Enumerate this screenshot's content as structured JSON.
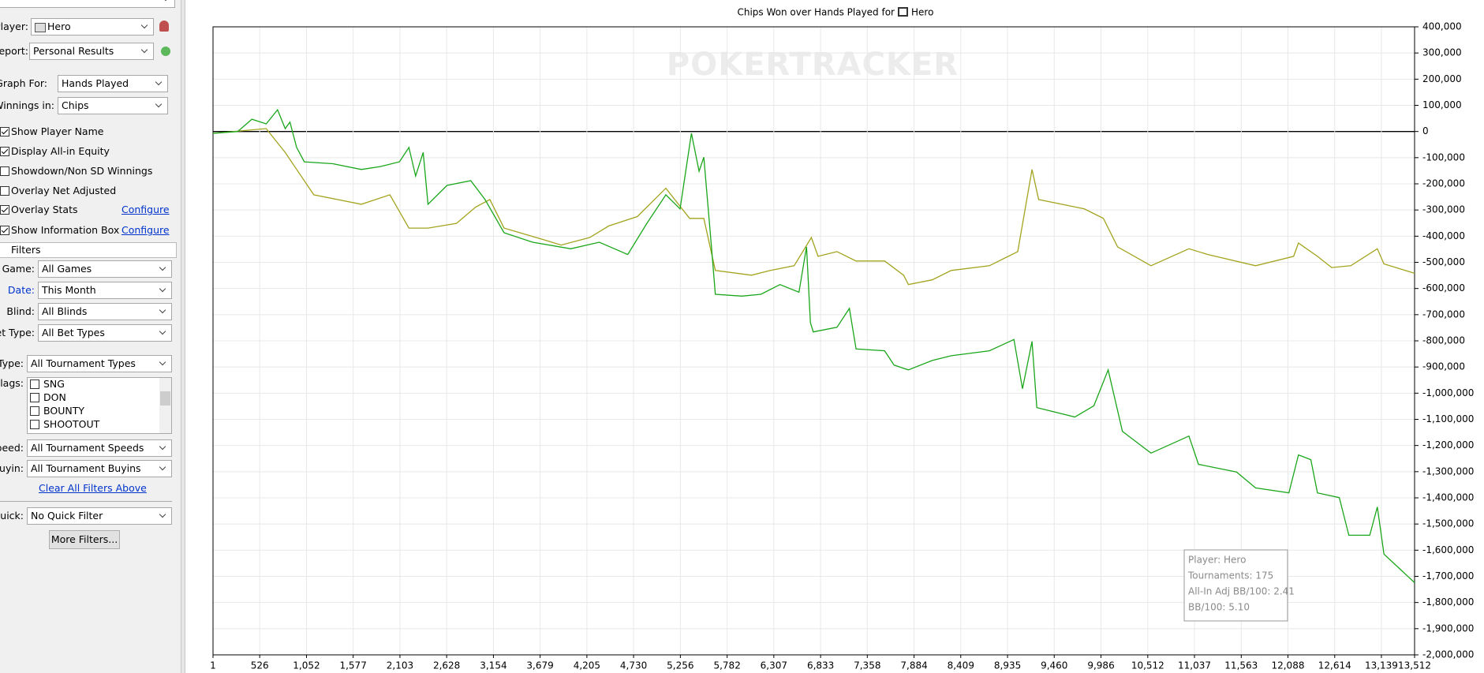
{
  "sidebar": {
    "player": {
      "label": "Player:",
      "value": "Hero"
    },
    "report": {
      "label": "Report:",
      "value": "Personal Results"
    },
    "graph_for": {
      "label": "Graph For:",
      "value": "Hands Played"
    },
    "winnings_in": {
      "label": "Winnings in:",
      "value": "Chips"
    },
    "options": [
      {
        "label": "Show Player Name",
        "checked": true
      },
      {
        "label": "Display All-in Equity",
        "checked": true
      },
      {
        "label": "Showdown/Non SD Winnings",
        "checked": false
      },
      {
        "label": "Overlay Net Adjusted",
        "checked": false
      },
      {
        "label": "Overlay Stats",
        "checked": true,
        "link": "Configure"
      },
      {
        "label": "Show Information Box",
        "checked": true,
        "link": "Configure"
      }
    ],
    "filters_title": "Filters",
    "filters": [
      {
        "label": "Game:",
        "value": "All Games"
      },
      {
        "label": "Date:",
        "value": "This Month"
      },
      {
        "label": "Blind:",
        "value": "All Blinds"
      },
      {
        "label": "Bet Type:",
        "value": "All Bet Types"
      },
      {
        "label": "Type:",
        "value": "All Tournament Types"
      }
    ],
    "flags": {
      "label": "Flags:",
      "items": [
        "SNG",
        "DON",
        "BOUNTY",
        "SHOOTOUT"
      ]
    },
    "filters2": [
      {
        "label": "Speed:",
        "value": "All Tournament Speeds"
      },
      {
        "label": "Buyin:",
        "value": "All Tournament Buyins"
      }
    ],
    "clear": "Clear All Filters Above",
    "quick": {
      "label": "Quick:",
      "value": "No Quick Filter"
    },
    "more": "More Filters..."
  },
  "chart_data": {
    "type": "line",
    "title": "Chips Won over Hands Played for",
    "title_player": "Hero",
    "watermark": "POKERTRACKER",
    "grid": true,
    "xlim": [
      1,
      13512
    ],
    "ylim": [
      -2000000,
      400000
    ],
    "xticks": [
      1,
      526,
      {
        "value": 1052,
        "label": "1,052"
      },
      {
        "value": 1577,
        "label": "1,577"
      },
      {
        "value": 2103,
        "label": "2,103"
      },
      {
        "value": 2628,
        "label": "2,628"
      },
      {
        "value": 3154,
        "label": "3,154"
      },
      {
        "value": 3679,
        "label": "3,679"
      },
      {
        "value": 4205,
        "label": "4,205"
      },
      {
        "value": 4730,
        "label": "4,730"
      },
      {
        "value": 5256,
        "label": "5,256"
      },
      {
        "value": 5782,
        "label": "5,782"
      },
      {
        "value": 6307,
        "label": "6,307"
      },
      {
        "value": 6833,
        "label": "6,833"
      },
      {
        "value": 7358,
        "label": "7,358"
      },
      {
        "value": 7884,
        "label": "7,884"
      },
      {
        "value": 8409,
        "label": "8,409"
      },
      {
        "value": 8935,
        "label": "8,935"
      },
      {
        "value": 9460,
        "label": "9,460"
      },
      {
        "value": 9986,
        "label": "9,986"
      },
      {
        "value": 10512,
        "label": "10,512"
      },
      {
        "value": 11037,
        "label": "11,037"
      },
      {
        "value": 11563,
        "label": "11,563"
      },
      {
        "value": 12088,
        "label": "12,088"
      },
      {
        "value": 12614,
        "label": "12,614"
      },
      {
        "value": 13139,
        "label": "13,139"
      },
      {
        "value": 13512,
        "label": "13,512"
      }
    ],
    "yticks": [
      {
        "value": 400000,
        "label": "400,000"
      },
      {
        "value": 300000,
        "label": "300,000"
      },
      {
        "value": 200000,
        "label": "200,000"
      },
      {
        "value": 100000,
        "label": "100,000"
      },
      0,
      {
        "value": -100000,
        "label": "-100,000"
      },
      {
        "value": -200000,
        "label": "-200,000"
      },
      {
        "value": -300000,
        "label": "-300,000"
      },
      {
        "value": -400000,
        "label": "-400,000"
      },
      {
        "value": -500000,
        "label": "-500,000"
      },
      {
        "value": -600000,
        "label": "-600,000"
      },
      {
        "value": -700000,
        "label": "-700,000"
      },
      {
        "value": -800000,
        "label": "-800,000"
      },
      {
        "value": -900000,
        "label": "-900,000"
      },
      {
        "value": -1000000,
        "label": "-1,000,000"
      },
      {
        "value": -1100000,
        "label": "-1,100,000"
      },
      {
        "value": -1200000,
        "label": "-1,200,000"
      },
      {
        "value": -1300000,
        "label": "-1,300,000"
      },
      {
        "value": -1400000,
        "label": "-1,400,000"
      },
      {
        "value": -1500000,
        "label": "-1,500,000"
      },
      {
        "value": -1600000,
        "label": "-1,600,000"
      },
      {
        "value": -1700000,
        "label": "-1,700,000"
      },
      {
        "value": -1800000,
        "label": "-1,800,000"
      },
      {
        "value": -1900000,
        "label": "-1,900,000"
      },
      {
        "value": -2000000,
        "label": "-2,000,000"
      }
    ],
    "series": [
      {
        "color": "#a3a31e",
        "x": [
          1,
          599,
          813,
          1134,
          1669,
          1990,
          2204,
          2418,
          2739,
          2953,
          3114,
          3274,
          3702,
          3916,
          4237,
          4451,
          4772,
          5093,
          5360,
          5520,
          5649,
          6056,
          6269,
          6536,
          6729,
          6804,
          7017,
          7232,
          7553,
          7767,
          7820,
          8088,
          8302,
          8731,
          9050,
          9210,
          9285,
          9799,
          10013,
          10173,
          10548,
          10975,
          11189,
          11724,
          12152,
          12206,
          12420,
          12580,
          12794,
          13093,
          13168,
          13512
        ],
        "values": [
          -7000,
          11000,
          -80000,
          -242000,
          -278000,
          -242000,
          -369000,
          -369000,
          -351000,
          -289000,
          -260000,
          -369000,
          -412000,
          -434000,
          -405000,
          -361000,
          -325000,
          -217000,
          -332000,
          -332000,
          -531000,
          -549000,
          -531000,
          -513000,
          -405000,
          -477000,
          -459000,
          -495000,
          -495000,
          -549000,
          -585000,
          -567000,
          -531000,
          -513000,
          -459000,
          -145000,
          -260000,
          -296000,
          -332000,
          -441000,
          -513000,
          -448000,
          -470000,
          -513000,
          -477000,
          -426000,
          -477000,
          -520000,
          -513000,
          -448000,
          -506000,
          -542000
        ]
      },
      {
        "color": "#1aa61a",
        "x": [
          1,
          278,
          438,
          599,
          727,
          813,
          866,
          941,
          1027,
          1348,
          1669,
          1883,
          2097,
          2204,
          2279,
          2364,
          2418,
          2632,
          2899,
          3060,
          3274,
          3595,
          4023,
          4344,
          4665,
          4879,
          5093,
          5253,
          5381,
          5467,
          5520,
          5606,
          5649,
          5948,
          6162,
          6376,
          6590,
          6675,
          6718,
          6750,
          7017,
          7157,
          7232,
          7553,
          7660,
          7820,
          8088,
          8302,
          8731,
          9007,
          9103,
          9210,
          9264,
          9692,
          9906,
          10066,
          10227,
          10548,
          10975,
          11082,
          11510,
          11724,
          12099,
          12206,
          12345,
          12420,
          12666,
          12773,
          13008,
          13093,
          13168,
          13512
        ],
        "values": [
          -7000,
          0,
          47000,
          29000,
          83000,
          11000,
          36000,
          -61000,
          -116000,
          -123000,
          -145000,
          -134000,
          -116000,
          -61000,
          -170000,
          -80000,
          -278000,
          -206000,
          -188000,
          -260000,
          -387000,
          -423000,
          -448000,
          -423000,
          -470000,
          -351000,
          -242000,
          -296000,
          -7000,
          -152000,
          -98000,
          -441000,
          -622000,
          -629000,
          -622000,
          -585000,
          -614000,
          -441000,
          -730000,
          -766000,
          -748000,
          -676000,
          -831000,
          -838000,
          -893000,
          -911000,
          -875000,
          -857000,
          -838000,
          -795000,
          -983000,
          -802000,
          -1055000,
          -1091000,
          -1048000,
          -911000,
          -1146000,
          -1229000,
          -1164000,
          -1272000,
          -1301000,
          -1362000,
          -1381000,
          -1236000,
          -1254000,
          -1381000,
          -1399000,
          -1543000,
          -1543000,
          -1435000,
          -1615000,
          -1724000
        ]
      }
    ],
    "info_box": [
      "Player: Hero",
      "Tournaments: 175",
      "All-In Adj BB/100: 2.41",
      "BB/100: 5.10"
    ]
  }
}
